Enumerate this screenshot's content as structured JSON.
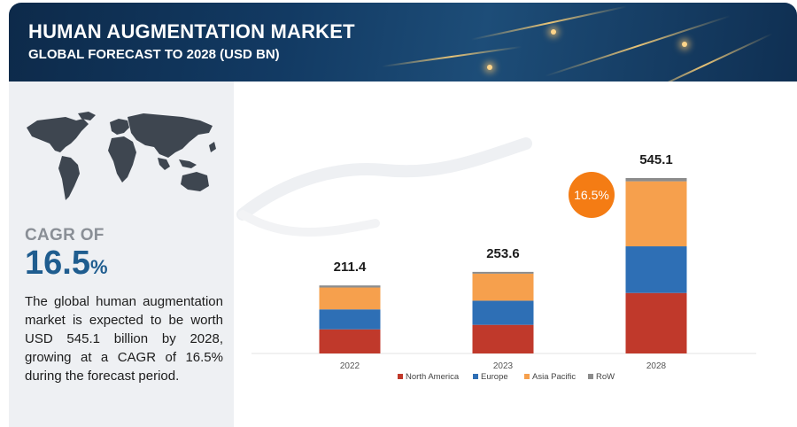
{
  "header": {
    "title": "HUMAN AUGMENTATION MARKET",
    "subtitle": "GLOBAL FORECAST TO 2028 (USD BN)"
  },
  "left": {
    "cagr_label": "CAGR OF",
    "cagr_value": "16.5",
    "cagr_unit": "%",
    "description": "The global human augmentation market is expected to be worth USD 545.1 billion by 2028, growing at a CAGR of 16.5% during the forecast period."
  },
  "badge": {
    "text": "16.5%",
    "color": "#f47c14"
  },
  "chart_data": {
    "type": "bar",
    "stacked": true,
    "categories": [
      "2022",
      "2023",
      "2028"
    ],
    "totals": [
      "211.4",
      "253.6",
      "545.1"
    ],
    "series": [
      {
        "name": "North America",
        "color": "#c0392b",
        "values": [
          75,
          89,
          188
        ]
      },
      {
        "name": "Europe",
        "color": "#2e6fb5",
        "values": [
          62,
          75,
          145
        ]
      },
      {
        "name": "Asia Pacific",
        "color": "#f6a04d",
        "values": [
          68,
          84,
          202
        ]
      },
      {
        "name": "RoW",
        "color": "#8c8c8c",
        "values": [
          6.4,
          5.6,
          10.1
        ]
      }
    ],
    "ylim": [
      0,
      545.1
    ],
    "grid": false,
    "legend_position": "bottom"
  }
}
